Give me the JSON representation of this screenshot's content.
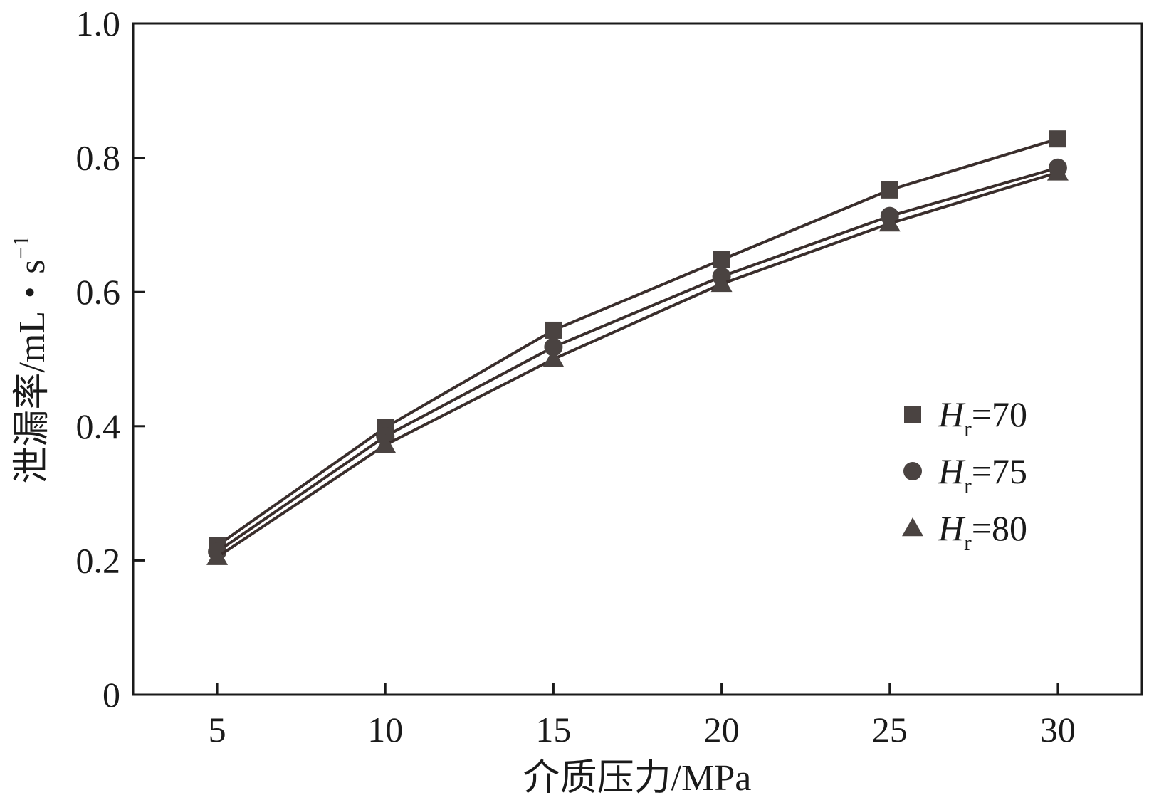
{
  "chart_data": {
    "type": "line",
    "xlabel": "介质压力/MPa",
    "ylabel": "泄漏率/mL・s",
    "ylabel_sup": "−1",
    "x": [
      5,
      10,
      15,
      20,
      25,
      30
    ],
    "xlim": [
      2.5,
      32.5
    ],
    "ylim": [
      0,
      1.0
    ],
    "xticks": [
      "5",
      "10",
      "15",
      "20",
      "25",
      "30"
    ],
    "yticks": [
      {
        "value": 0,
        "label": "0"
      },
      {
        "value": 0.2,
        "label": "0.2"
      },
      {
        "value": 0.4,
        "label": "0.4"
      },
      {
        "value": 0.6,
        "label": "0.6"
      },
      {
        "value": 0.8,
        "label": "0.8"
      },
      {
        "value": 1.0,
        "label": "1.0"
      }
    ],
    "grid": false,
    "legend_position": "right-middle",
    "series": [
      {
        "name_main": "H",
        "name_sub": "r",
        "name_suffix": "=70",
        "marker": "square",
        "values": [
          0.222,
          0.398,
          0.543,
          0.648,
          0.752,
          0.828
        ]
      },
      {
        "name_main": "H",
        "name_sub": "r",
        "name_suffix": "=75",
        "marker": "circle",
        "values": [
          0.213,
          0.385,
          0.518,
          0.623,
          0.713,
          0.785
        ]
      },
      {
        "name_main": "H",
        "name_sub": "r",
        "name_suffix": "=80",
        "marker": "triangle",
        "values": [
          0.205,
          0.372,
          0.5,
          0.612,
          0.702,
          0.778
        ]
      }
    ],
    "colors": {
      "line": "#3a2e2c",
      "marker": "#4a4341",
      "axis": "#1a1a1a"
    }
  }
}
